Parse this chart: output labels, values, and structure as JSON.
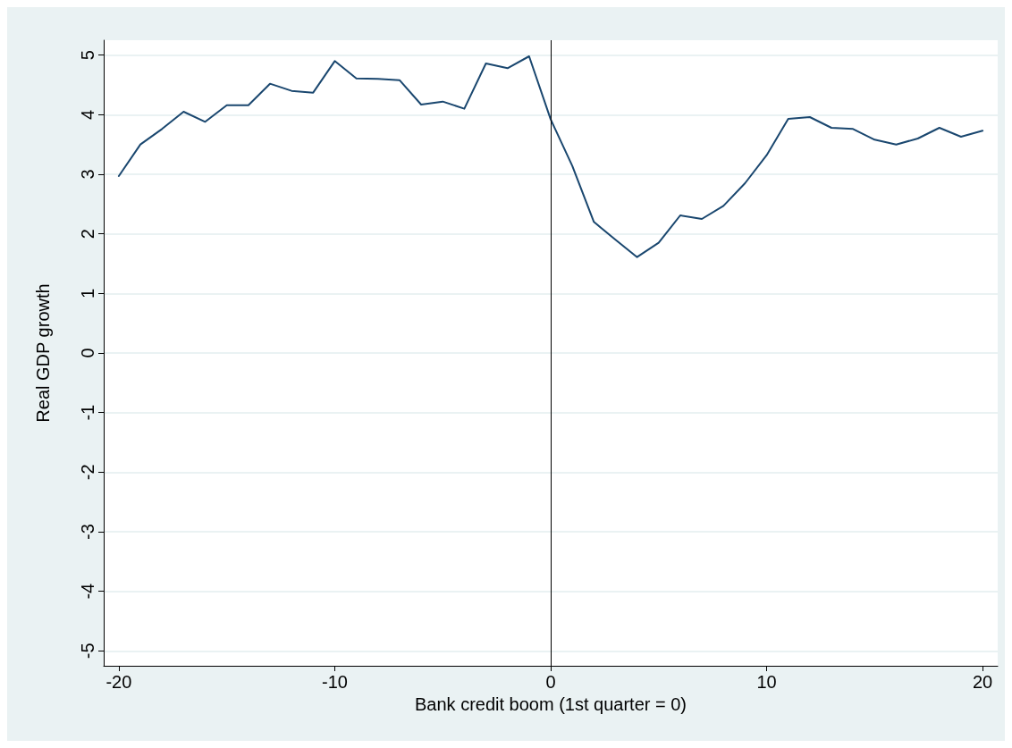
{
  "chart_data": {
    "type": "line",
    "xlabel": "Bank credit boom (1st quarter = 0)",
    "ylabel": "Real GDP growth",
    "x": [
      -20,
      -19,
      -18,
      -17,
      -16,
      -15,
      -14,
      -13,
      -12,
      -11,
      -10,
      -9,
      -8,
      -7,
      -6,
      -5,
      -4,
      -3,
      -2,
      -1,
      0,
      1,
      2,
      3,
      4,
      5,
      6,
      7,
      8,
      9,
      10,
      11,
      12,
      13,
      14,
      15,
      16,
      17,
      18,
      19,
      20
    ],
    "series": [
      {
        "color": "#1a476f",
        "values": [
          2.97,
          3.5,
          3.76,
          4.05,
          3.88,
          4.16,
          4.16,
          4.52,
          4.4,
          4.37,
          4.9,
          4.61,
          4.6,
          4.58,
          4.17,
          4.22,
          4.1,
          4.86,
          4.78,
          4.98,
          3.92,
          3.14,
          2.2,
          1.9,
          1.61,
          1.85,
          2.31,
          2.25,
          2.47,
          2.85,
          3.32,
          3.93,
          3.96,
          3.78,
          3.76,
          3.58,
          3.5,
          3.6,
          3.78,
          3.63,
          3.73
        ]
      }
    ],
    "xlim": [
      -20.7,
      20.7
    ],
    "xticks": [
      -20,
      -10,
      0,
      10,
      20
    ],
    "ylim": [
      -5.25,
      5.25
    ],
    "yticks": [
      -5,
      -4,
      -3,
      -2,
      -1,
      0,
      1,
      2,
      3,
      4,
      5
    ],
    "ref_lines": [
      {
        "axis": "x",
        "value": 0,
        "color": "#000000"
      }
    ],
    "grid": "y",
    "marker": "none",
    "line_style": "solid"
  }
}
